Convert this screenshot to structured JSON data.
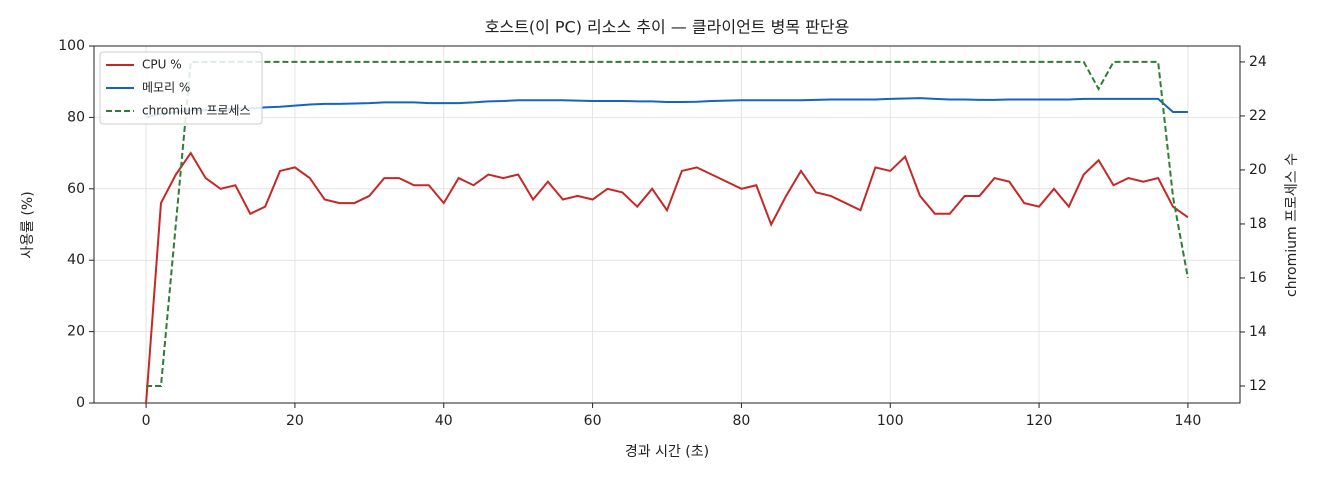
{
  "chart_data": {
    "type": "line",
    "title": "호스트(이 PC) 리소스 추이 — 클라이언트 병목 판단용",
    "xlabel": "경과 시간 (초)",
    "ylabel": "사용률 (%)",
    "y2label": "chromium 프로세스 수",
    "x": [
      0,
      2,
      4,
      6,
      8,
      10,
      12,
      14,
      16,
      18,
      20,
      22,
      24,
      26,
      28,
      30,
      32,
      34,
      36,
      38,
      40,
      42,
      44,
      46,
      48,
      50,
      52,
      54,
      56,
      58,
      60,
      62,
      64,
      66,
      68,
      70,
      72,
      74,
      76,
      78,
      80,
      82,
      84,
      86,
      88,
      90,
      92,
      94,
      96,
      98,
      100,
      102,
      104,
      106,
      108,
      110,
      112,
      114,
      116,
      118,
      120,
      122,
      124,
      126,
      128,
      130,
      132,
      134,
      136,
      138,
      140
    ],
    "series": [
      {
        "name": "CPU %",
        "color": "#c62828",
        "dash": false,
        "values": [
          0,
          56,
          64,
          70,
          63,
          60,
          61,
          53,
          55,
          65,
          66,
          63,
          57,
          56,
          56,
          58,
          63,
          63,
          61,
          61,
          56,
          63,
          61,
          64,
          63,
          64,
          57,
          62,
          57,
          58,
          57,
          60,
          59,
          55,
          60,
          54,
          65,
          66,
          64,
          62,
          60,
          61,
          50,
          58,
          65,
          59,
          58,
          56,
          54,
          66,
          65,
          69,
          58,
          53,
          53,
          58,
          58,
          63,
          62,
          56,
          55,
          60,
          55,
          64,
          68,
          61,
          63,
          62,
          63,
          55,
          52
        ]
      },
      {
        "name": "메모리 %",
        "color": "#1565c0",
        "dash": false,
        "values": [
          80,
          81,
          81.5,
          82,
          82,
          82,
          82.5,
          82.5,
          82.8,
          83,
          83.3,
          83.6,
          83.8,
          83.8,
          83.9,
          84,
          84.2,
          84.2,
          84.2,
          84,
          84,
          84,
          84.2,
          84.5,
          84.6,
          84.8,
          84.8,
          84.8,
          84.8,
          84.7,
          84.6,
          84.6,
          84.6,
          84.5,
          84.5,
          84.3,
          84.3,
          84.4,
          84.6,
          84.7,
          84.8,
          84.8,
          84.8,
          84.8,
          84.8,
          84.9,
          85,
          85,
          85,
          85,
          85.2,
          85.3,
          85.4,
          85.2,
          85,
          85,
          84.9,
          84.9,
          85,
          85,
          85,
          85,
          85,
          85.2,
          85.2,
          85.2,
          85.2,
          85.2,
          85.2,
          81.5,
          81.5
        ]
      },
      {
        "name": "chromium 프로세스",
        "color": "#2e7d32",
        "dash": true,
        "axis": "y2",
        "values": [
          12,
          12,
          18,
          24,
          24,
          24,
          24,
          24,
          24,
          24,
          24,
          24,
          24,
          24,
          24,
          24,
          24,
          24,
          24,
          24,
          24,
          24,
          24,
          24,
          24,
          24,
          24,
          24,
          24,
          24,
          24,
          24,
          24,
          24,
          24,
          24,
          24,
          24,
          24,
          24,
          24,
          24,
          24,
          24,
          24,
          24,
          24,
          24,
          24,
          24,
          24,
          24,
          24,
          24,
          24,
          24,
          24,
          24,
          24,
          24,
          24,
          24,
          24,
          24,
          23,
          24,
          24,
          24,
          24,
          19,
          16
        ]
      }
    ],
    "xlim": [
      -7,
      147
    ],
    "ylim": [
      0,
      100
    ],
    "y2lim": [
      11.37,
      24.59
    ],
    "xticks": [
      0,
      20,
      40,
      60,
      80,
      100,
      120,
      140
    ],
    "yticks": [
      0,
      20,
      40,
      60,
      80,
      100
    ],
    "y2ticks": [
      12,
      14,
      16,
      18,
      20,
      22,
      24
    ],
    "grid": true,
    "legend": "upper left"
  }
}
